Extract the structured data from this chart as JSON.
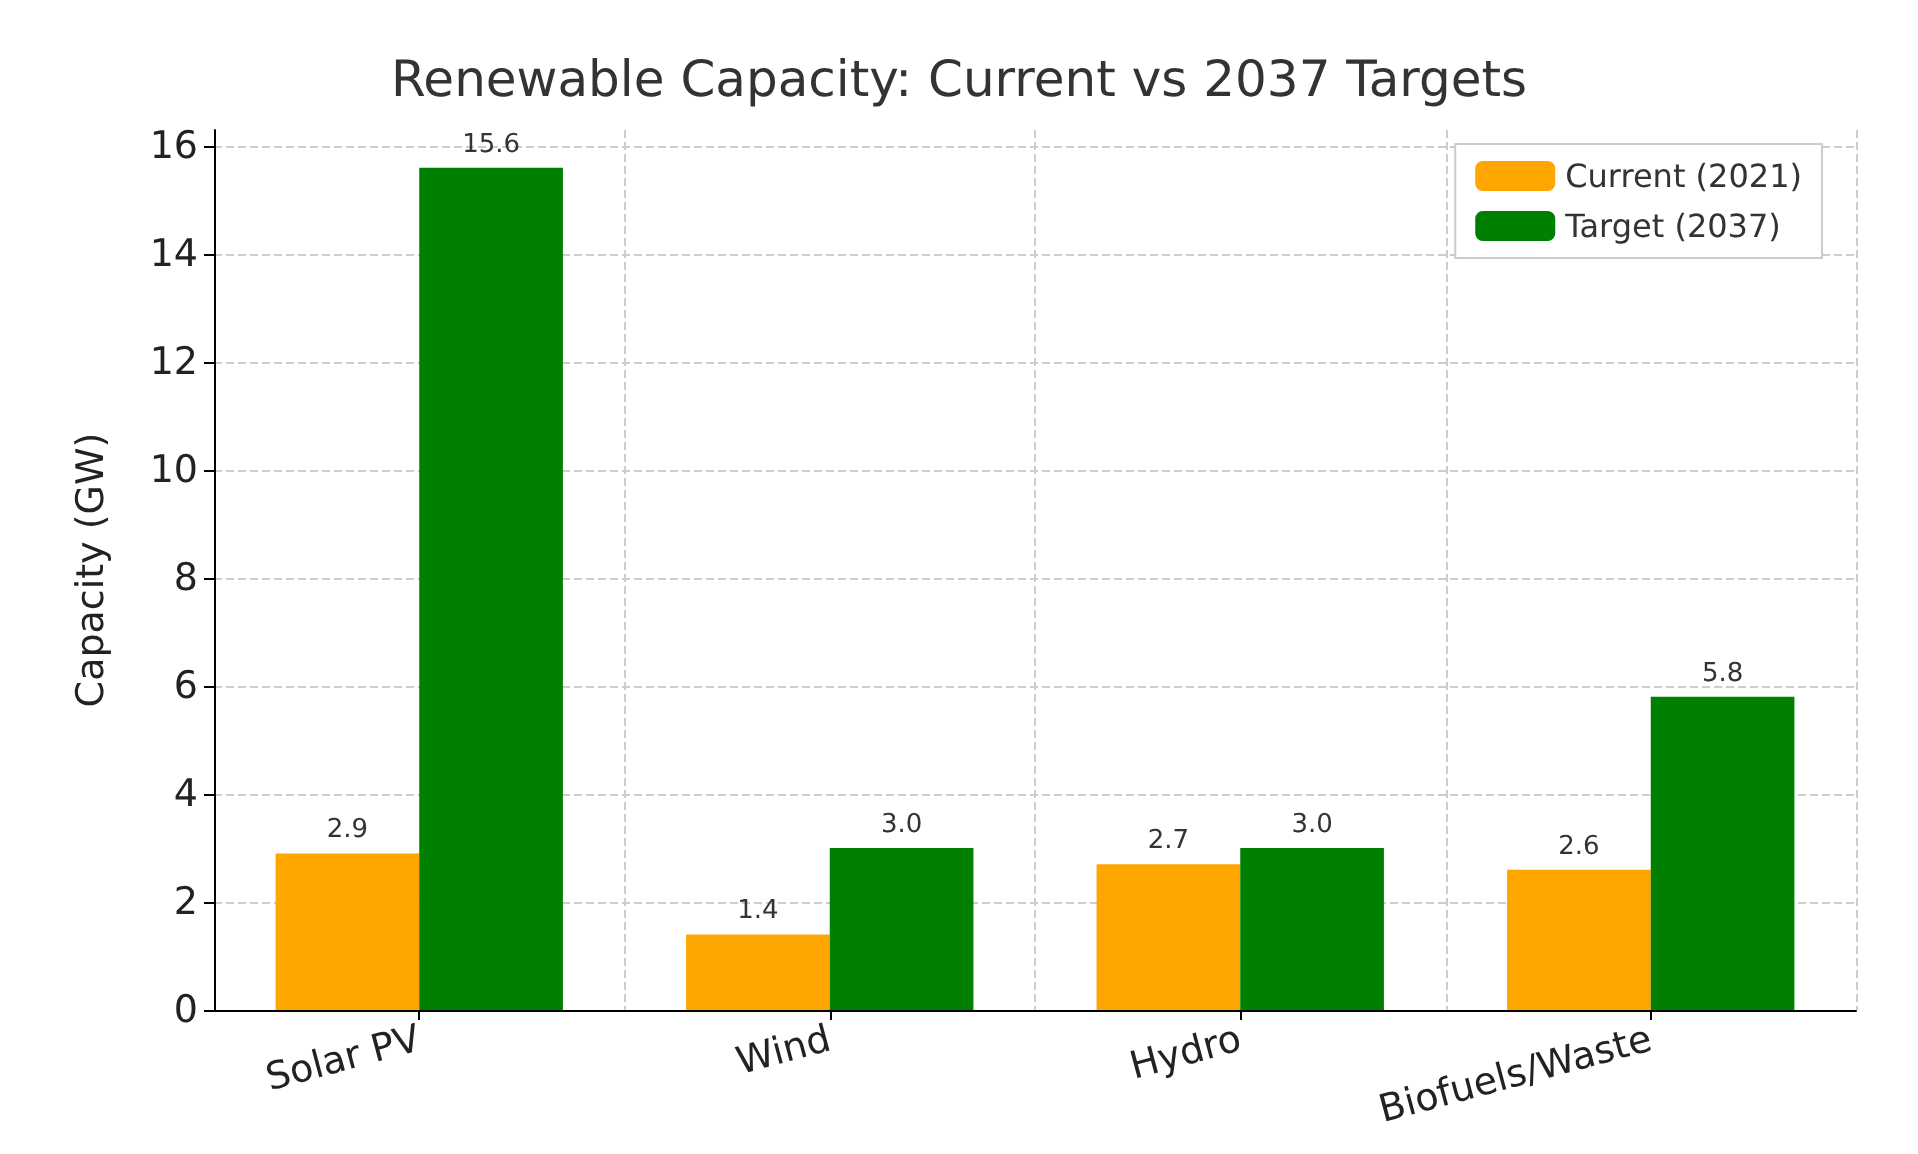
{
  "chart_data": {
    "type": "bar",
    "title": "Renewable Capacity: Current vs 2037 Targets",
    "ylabel": "Capacity (GW)",
    "categories": [
      "Solar PV",
      "Wind",
      "Hydro",
      "Biofuels/Waste"
    ],
    "series": [
      {
        "name": "Current (2021)",
        "color": "#ffa500",
        "values": [
          2.9,
          1.4,
          2.7,
          2.6
        ],
        "value_labels": [
          "2.9",
          "1.4",
          "2.7",
          "2.6"
        ]
      },
      {
        "name": "Target (2037)",
        "color": "#008000",
        "values": [
          15.6,
          3.0,
          3.0,
          5.8
        ],
        "value_labels": [
          "15.6",
          "3.0",
          "3.0",
          "5.8"
        ]
      }
    ],
    "ylim": [
      0,
      16.3
    ],
    "yticks": [
      0,
      2,
      4,
      6,
      8,
      10,
      12,
      14,
      16
    ],
    "grid": true,
    "legend": "top right"
  }
}
